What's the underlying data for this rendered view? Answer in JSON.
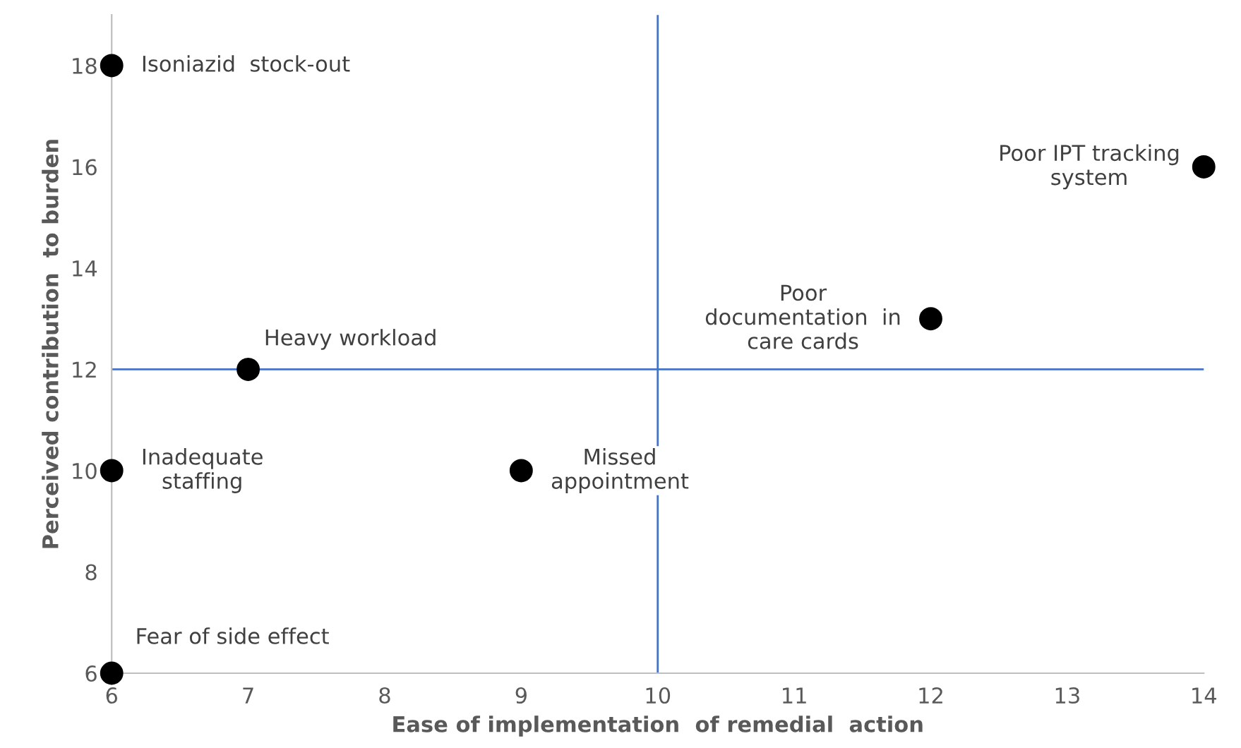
{
  "chart_data": {
    "type": "scatter",
    "xlabel": "Ease of implementation  of remedial  action",
    "ylabel": "Perceived contribution  to burden",
    "series": [
      {
        "color": "#000000",
        "x": [
          6,
          14,
          12,
          7,
          6,
          9,
          6
        ],
        "values": [
          18,
          16,
          13,
          12,
          10,
          10,
          6
        ]
      }
    ],
    "marker": "circle",
    "xlim": [
      6,
      14
    ],
    "xticks": [
      6,
      7,
      8,
      9,
      10,
      11,
      12,
      13,
      14
    ],
    "ylim": [
      6,
      19
    ],
    "yticks": [
      6,
      8,
      10,
      12,
      14,
      16,
      18
    ],
    "ref_lines": [
      {
        "axis": "x",
        "value": 10,
        "color": "#4472c4"
      },
      {
        "axis": "y",
        "value": 12,
        "color": "#4472c4"
      }
    ],
    "grid": false,
    "legend": false,
    "annotations": [
      {
        "text": "Isoniazid  stock-out",
        "x": 6,
        "y": 18
      },
      {
        "text": "Poor IPT tracking\nsystem",
        "x": 14,
        "y": 16
      },
      {
        "text": "Poor\ndocumentation  in\ncare cards",
        "x": 12,
        "y": 13
      },
      {
        "text": "Heavy workload",
        "x": 7,
        "y": 12
      },
      {
        "text": "Inadequate\nstaffing",
        "x": 6,
        "y": 10
      },
      {
        "text": "Missed\nappointment",
        "x": 9,
        "y": 10
      },
      {
        "text": "Fear of side effect",
        "x": 6,
        "y": 6
      }
    ]
  }
}
